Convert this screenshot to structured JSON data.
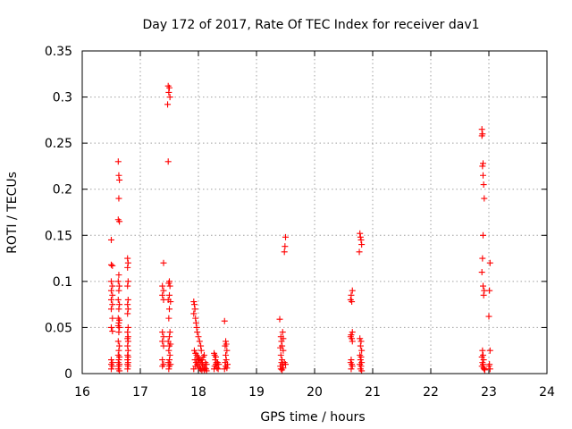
{
  "chart_data": {
    "type": "scatter",
    "title": "Day 172 of 2017, Rate Of TEC Index for receiver dav1",
    "xlabel": "GPS time / hours",
    "ylabel": "ROTI / TECUs",
    "xlim": [
      16,
      24
    ],
    "ylim": [
      0,
      0.35
    ],
    "grid": true,
    "x_ticks": [
      16,
      17,
      18,
      19,
      20,
      21,
      22,
      23,
      24
    ],
    "y_ticks": [
      0,
      0.05,
      0.1,
      0.15,
      0.2,
      0.25,
      0.3,
      0.35
    ],
    "x_tick_labels": [
      "16",
      "17",
      "18",
      "19",
      "20",
      "21",
      "22",
      "23",
      "24"
    ],
    "y_tick_labels": [
      "0",
      "0.05",
      "0.1",
      "0.15",
      "0.2",
      "0.25",
      "0.3",
      "0.35"
    ],
    "marker_color": "#ff0000",
    "marker": "plus",
    "series": [
      {
        "name": "dav1",
        "points": [
          [
            16.5,
            0.145
          ],
          [
            16.5,
            0.118
          ],
          [
            16.52,
            0.117
          ],
          [
            16.5,
            0.1
          ],
          [
            16.52,
            0.095
          ],
          [
            16.5,
            0.09
          ],
          [
            16.52,
            0.085
          ],
          [
            16.5,
            0.08
          ],
          [
            16.52,
            0.075
          ],
          [
            16.5,
            0.07
          ],
          [
            16.52,
            0.06
          ],
          [
            16.5,
            0.05
          ],
          [
            16.52,
            0.046
          ],
          [
            16.5,
            0.015
          ],
          [
            16.52,
            0.012
          ],
          [
            16.5,
            0.01
          ],
          [
            16.52,
            0.008
          ],
          [
            16.5,
            0.005
          ],
          [
            16.62,
            0.23
          ],
          [
            16.63,
            0.215
          ],
          [
            16.64,
            0.21
          ],
          [
            16.63,
            0.19
          ],
          [
            16.62,
            0.167
          ],
          [
            16.64,
            0.165
          ],
          [
            16.63,
            0.107
          ],
          [
            16.62,
            0.1
          ],
          [
            16.64,
            0.095
          ],
          [
            16.63,
            0.09
          ],
          [
            16.62,
            0.08
          ],
          [
            16.64,
            0.075
          ],
          [
            16.63,
            0.07
          ],
          [
            16.62,
            0.06
          ],
          [
            16.64,
            0.058
          ],
          [
            16.63,
            0.055
          ],
          [
            16.62,
            0.052
          ],
          [
            16.64,
            0.05
          ],
          [
            16.63,
            0.045
          ],
          [
            16.62,
            0.035
          ],
          [
            16.64,
            0.03
          ],
          [
            16.63,
            0.025
          ],
          [
            16.62,
            0.02
          ],
          [
            16.64,
            0.018
          ],
          [
            16.63,
            0.015
          ],
          [
            16.62,
            0.012
          ],
          [
            16.64,
            0.01
          ],
          [
            16.63,
            0.008
          ],
          [
            16.62,
            0.005
          ],
          [
            16.64,
            0.003
          ],
          [
            16.78,
            0.125
          ],
          [
            16.79,
            0.12
          ],
          [
            16.78,
            0.115
          ],
          [
            16.79,
            0.1
          ],
          [
            16.78,
            0.095
          ],
          [
            16.79,
            0.08
          ],
          [
            16.78,
            0.075
          ],
          [
            16.79,
            0.07
          ],
          [
            16.78,
            0.065
          ],
          [
            16.79,
            0.05
          ],
          [
            16.78,
            0.045
          ],
          [
            16.79,
            0.04
          ],
          [
            16.78,
            0.038
          ],
          [
            16.79,
            0.035
          ],
          [
            16.78,
            0.03
          ],
          [
            16.79,
            0.025
          ],
          [
            16.78,
            0.02
          ],
          [
            16.79,
            0.018
          ],
          [
            16.78,
            0.015
          ],
          [
            16.79,
            0.012
          ],
          [
            16.78,
            0.01
          ],
          [
            16.79,
            0.008
          ],
          [
            16.78,
            0.005
          ],
          [
            17.4,
            0.12
          ],
          [
            17.38,
            0.095
          ],
          [
            17.4,
            0.09
          ],
          [
            17.38,
            0.085
          ],
          [
            17.4,
            0.08
          ],
          [
            17.38,
            0.045
          ],
          [
            17.4,
            0.04
          ],
          [
            17.38,
            0.035
          ],
          [
            17.4,
            0.03
          ],
          [
            17.38,
            0.015
          ],
          [
            17.4,
            0.01
          ],
          [
            17.38,
            0.008
          ],
          [
            17.48,
            0.312
          ],
          [
            17.5,
            0.31
          ],
          [
            17.49,
            0.305
          ],
          [
            17.51,
            0.3
          ],
          [
            17.47,
            0.292
          ],
          [
            17.48,
            0.23
          ],
          [
            17.5,
            0.1
          ],
          [
            17.49,
            0.098
          ],
          [
            17.51,
            0.095
          ],
          [
            17.5,
            0.085
          ],
          [
            17.48,
            0.08
          ],
          [
            17.52,
            0.078
          ],
          [
            17.5,
            0.07
          ],
          [
            17.49,
            0.06
          ],
          [
            17.51,
            0.045
          ],
          [
            17.5,
            0.04
          ],
          [
            17.48,
            0.035
          ],
          [
            17.52,
            0.032
          ],
          [
            17.5,
            0.03
          ],
          [
            17.49,
            0.025
          ],
          [
            17.51,
            0.02
          ],
          [
            17.5,
            0.015
          ],
          [
            17.48,
            0.012
          ],
          [
            17.52,
            0.01
          ],
          [
            17.5,
            0.008
          ],
          [
            17.49,
            0.005
          ],
          [
            17.92,
            0.078
          ],
          [
            17.93,
            0.075
          ],
          [
            17.94,
            0.07
          ],
          [
            17.92,
            0.065
          ],
          [
            17.95,
            0.06
          ],
          [
            17.96,
            0.055
          ],
          [
            17.97,
            0.05
          ],
          [
            17.98,
            0.045
          ],
          [
            18.0,
            0.04
          ],
          [
            18.02,
            0.035
          ],
          [
            18.04,
            0.03
          ],
          [
            18.05,
            0.025
          ],
          [
            17.93,
            0.025
          ],
          [
            17.95,
            0.022
          ],
          [
            17.97,
            0.02
          ],
          [
            17.99,
            0.018
          ],
          [
            18.01,
            0.016
          ],
          [
            18.03,
            0.014
          ],
          [
            18.05,
            0.012
          ],
          [
            18.07,
            0.01
          ],
          [
            18.09,
            0.008
          ],
          [
            18.11,
            0.006
          ],
          [
            18.13,
            0.005
          ],
          [
            17.94,
            0.015
          ],
          [
            17.96,
            0.012
          ],
          [
            17.98,
            0.01
          ],
          [
            18.0,
            0.008
          ],
          [
            18.02,
            0.006
          ],
          [
            18.04,
            0.005
          ],
          [
            18.06,
            0.015
          ],
          [
            18.08,
            0.018
          ],
          [
            18.1,
            0.02
          ],
          [
            18.12,
            0.012
          ],
          [
            18.14,
            0.01
          ],
          [
            17.92,
            0.005
          ],
          [
            17.95,
            0.008
          ],
          [
            18.0,
            0.012
          ],
          [
            18.06,
            0.003
          ],
          [
            18.1,
            0.004
          ],
          [
            18.14,
            0.003
          ],
          [
            18.27,
            0.022
          ],
          [
            18.28,
            0.02
          ],
          [
            18.3,
            0.018
          ],
          [
            18.29,
            0.015
          ],
          [
            18.31,
            0.012
          ],
          [
            18.3,
            0.01
          ],
          [
            18.28,
            0.008
          ],
          [
            18.32,
            0.006
          ],
          [
            18.34,
            0.005
          ],
          [
            18.33,
            0.012
          ],
          [
            18.35,
            0.01
          ],
          [
            18.27,
            0.005
          ],
          [
            18.45,
            0.057
          ],
          [
            18.47,
            0.035
          ],
          [
            18.48,
            0.032
          ],
          [
            18.46,
            0.03
          ],
          [
            18.49,
            0.025
          ],
          [
            18.47,
            0.02
          ],
          [
            18.48,
            0.015
          ],
          [
            18.46,
            0.012
          ],
          [
            18.5,
            0.01
          ],
          [
            18.47,
            0.008
          ],
          [
            18.49,
            0.006
          ],
          [
            18.45,
            0.005
          ],
          [
            19.4,
            0.059
          ],
          [
            19.45,
            0.045
          ],
          [
            19.42,
            0.04
          ],
          [
            19.46,
            0.038
          ],
          [
            19.43,
            0.035
          ],
          [
            19.44,
            0.03
          ],
          [
            19.41,
            0.028
          ],
          [
            19.46,
            0.025
          ],
          [
            19.42,
            0.02
          ],
          [
            19.44,
            0.015
          ],
          [
            19.43,
            0.012
          ],
          [
            19.45,
            0.01
          ],
          [
            19.41,
            0.008
          ],
          [
            19.46,
            0.006
          ],
          [
            19.42,
            0.005
          ],
          [
            19.44,
            0.004
          ],
          [
            19.48,
            0.012
          ],
          [
            19.5,
            0.01
          ],
          [
            19.5,
            0.148
          ],
          [
            19.49,
            0.138
          ],
          [
            19.48,
            0.132
          ],
          [
            20.65,
            0.09
          ],
          [
            20.63,
            0.085
          ],
          [
            20.62,
            0.08
          ],
          [
            20.64,
            0.078
          ],
          [
            20.65,
            0.045
          ],
          [
            20.63,
            0.042
          ],
          [
            20.62,
            0.04
          ],
          [
            20.64,
            0.038
          ],
          [
            20.65,
            0.035
          ],
          [
            20.63,
            0.015
          ],
          [
            20.62,
            0.012
          ],
          [
            20.64,
            0.01
          ],
          [
            20.65,
            0.008
          ],
          [
            20.63,
            0.005
          ],
          [
            20.78,
            0.152
          ],
          [
            20.79,
            0.148
          ],
          [
            20.8,
            0.145
          ],
          [
            20.81,
            0.14
          ],
          [
            20.77,
            0.132
          ],
          [
            20.78,
            0.038
          ],
          [
            20.8,
            0.035
          ],
          [
            20.79,
            0.03
          ],
          [
            20.81,
            0.025
          ],
          [
            20.78,
            0.02
          ],
          [
            20.8,
            0.018
          ],
          [
            20.79,
            0.015
          ],
          [
            20.81,
            0.012
          ],
          [
            20.78,
            0.01
          ],
          [
            20.8,
            0.008
          ],
          [
            20.79,
            0.005
          ],
          [
            20.81,
            0.003
          ],
          [
            22.88,
            0.265
          ],
          [
            22.89,
            0.26
          ],
          [
            22.88,
            0.258
          ],
          [
            22.9,
            0.228
          ],
          [
            22.89,
            0.225
          ],
          [
            22.9,
            0.215
          ],
          [
            22.91,
            0.205
          ],
          [
            22.92,
            0.19
          ],
          [
            22.9,
            0.15
          ],
          [
            22.89,
            0.125
          ],
          [
            22.88,
            0.11
          ],
          [
            22.9,
            0.095
          ],
          [
            22.92,
            0.09
          ],
          [
            22.91,
            0.085
          ],
          [
            22.89,
            0.025
          ],
          [
            22.9,
            0.02
          ],
          [
            22.88,
            0.018
          ],
          [
            22.91,
            0.015
          ],
          [
            22.89,
            0.012
          ],
          [
            22.9,
            0.01
          ],
          [
            22.88,
            0.008
          ],
          [
            22.91,
            0.006
          ],
          [
            22.92,
            0.005
          ],
          [
            22.93,
            0.004
          ],
          [
            23.02,
            0.12
          ],
          [
            23.01,
            0.09
          ],
          [
            23.0,
            0.062
          ],
          [
            23.02,
            0.025
          ],
          [
            23.01,
            0.01
          ],
          [
            23.0,
            0.008
          ],
          [
            23.02,
            0.005
          ]
        ]
      }
    ]
  }
}
